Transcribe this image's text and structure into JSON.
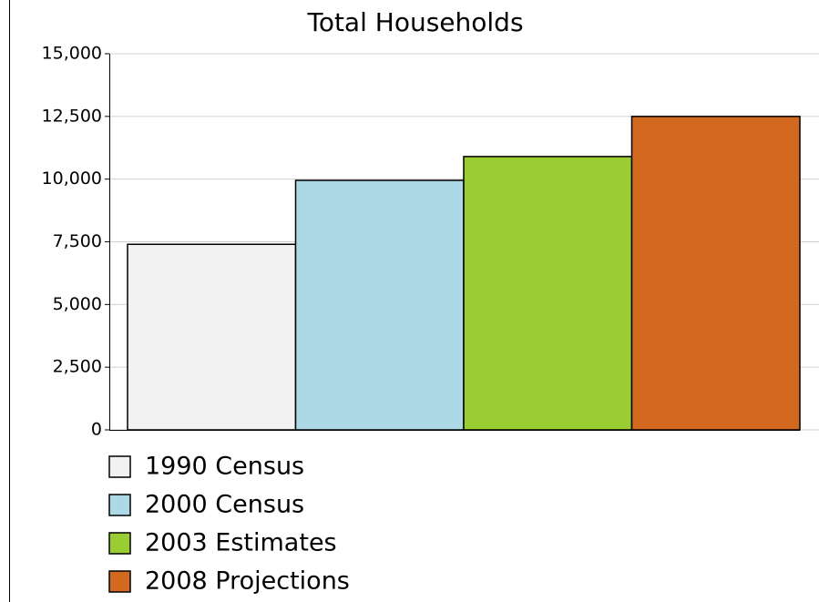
{
  "chart_data": {
    "type": "bar",
    "title": "Total Households",
    "categories": [
      null
    ],
    "series": [
      {
        "name": "1990 Census",
        "color": "#f2f2f2",
        "values": [
          7400
        ]
      },
      {
        "name": "2000 Census",
        "color": "#add8e6",
        "values": [
          9950
        ]
      },
      {
        "name": "2003 Estimates",
        "color": "#9acd32",
        "values": [
          10900
        ]
      },
      {
        "name": "2008 Projections",
        "color": "#d2691e",
        "values": [
          12500
        ]
      }
    ],
    "ylim": [
      0,
      15000
    ],
    "yticks": [
      0,
      {
        "value": 2500,
        "label": "2,500"
      },
      {
        "value": 5000,
        "label": "5,000"
      },
      {
        "value": 7500,
        "label": "7,500"
      },
      {
        "value": 10000,
        "label": "10,000"
      },
      {
        "value": 12500,
        "label": "12,500"
      },
      {
        "value": 15000,
        "label": "15,000"
      }
    ],
    "grid": true,
    "legend": "bottom-left"
  }
}
